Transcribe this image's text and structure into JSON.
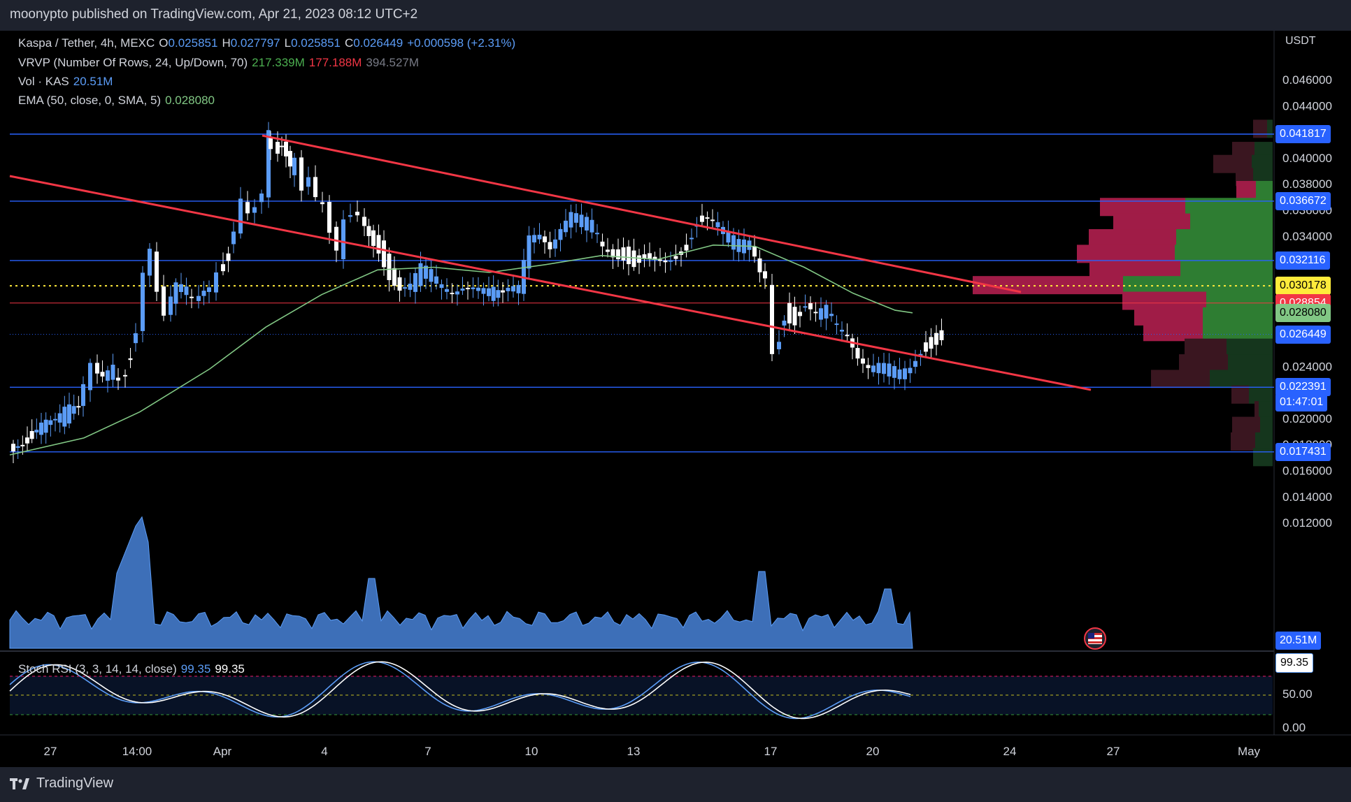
{
  "header": {
    "published": "moonypto published on TradingView.com, Apr 21, 2023 08:12 UTC+2"
  },
  "legend": {
    "symbol": {
      "name": "Kaspa / Tether, 4h, MEXC",
      "o_label": "O",
      "o": "0.025851",
      "h_label": "H",
      "h": "0.027797",
      "l_label": "L",
      "l": "0.025851",
      "c_label": "C",
      "c": "0.026449",
      "change": "+0.000598 (+2.31%)"
    },
    "vrvp": {
      "name": "VRVP (Number Of Rows, 24, Up/Down, 70)",
      "up": "217.339M",
      "down": "177.188M",
      "total": "394.527M"
    },
    "vol": {
      "name": "Vol · KAS",
      "value": "20.51M"
    },
    "ema": {
      "name": "EMA (50, close, 0, SMA, 5)",
      "value": "0.028080"
    },
    "stoch": {
      "name": "Stoch RSI (3, 3, 14, 14, close)",
      "k": "99.35",
      "d": "99.35"
    }
  },
  "price_axis": {
    "unit": "USDT",
    "ticks": [
      "0.046000",
      "0.044000",
      "0.040000",
      "0.038000",
      "0.036000",
      "0.034000",
      "0.024000",
      "0.020000",
      "0.018000",
      "0.016000",
      "0.014000",
      "0.012000"
    ],
    "tick_values": [
      0.046,
      0.044,
      0.04,
      0.038,
      0.036,
      0.034,
      0.024,
      0.02,
      0.018,
      0.016,
      0.014,
      0.012
    ],
    "tags": [
      {
        "text": "0.041817",
        "value": 0.041817,
        "color": "#2962ff",
        "text_color": "#ffffff"
      },
      {
        "text": "0.036672",
        "value": 0.036672,
        "color": "#2962ff",
        "text_color": "#ffffff"
      },
      {
        "text": "0.032116",
        "value": 0.032116,
        "color": "#2962ff",
        "text_color": "#ffffff"
      },
      {
        "text": "0.030178",
        "value": 0.030178,
        "color": "#ffeb3b",
        "text_color": "#000000"
      },
      {
        "text": "0.028854",
        "value": 0.028854,
        "color": "#f23645",
        "text_color": "#ffffff"
      },
      {
        "text": "0.028080",
        "value": 0.02808,
        "color": "#81c784",
        "text_color": "#000000"
      },
      {
        "text": "0.026449",
        "value": 0.026449,
        "color": "#2962ff",
        "text_color": "#ffffff"
      },
      {
        "text": "0.022391",
        "value": 0.022391,
        "color": "#2962ff",
        "text_color": "#ffffff"
      },
      {
        "text": "0.017431",
        "value": 0.017431,
        "color": "#2962ff",
        "text_color": "#ffffff"
      }
    ],
    "countdown": "01:47:01",
    "vol_tag": "20.51M"
  },
  "stoch_axis": {
    "ticks": [
      "50.00",
      "0.00"
    ],
    "tick_values": [
      50,
      0
    ],
    "tag": "99.35"
  },
  "time_axis": {
    "labels": [
      "27",
      "14:00",
      "Apr",
      "4",
      "7",
      "10",
      "13",
      "17",
      "20",
      "24",
      "27",
      "May"
    ]
  },
  "levels": {
    "horizontal": [
      0.041817,
      0.036672,
      0.032116,
      0.022391,
      0.017431
    ],
    "poc": 0.030178,
    "red_line": 0.028854,
    "dotted_current": 0.026449
  },
  "colors": {
    "up": "#5b9cf6",
    "down": "#ffffff",
    "level": "#2962ff",
    "trend": "#f23645",
    "ema": "#81c784",
    "vol": "#5b9cf6",
    "stoch_k": "#5b9cf6",
    "stoch_d": "#ffffff",
    "vp_up": "#2e7d32",
    "vp_down": "#a01c47"
  },
  "branding": {
    "name": "TradingView"
  },
  "icons": {
    "logo": "tradingview-logo-icon",
    "flag": "us-flag-icon"
  }
}
